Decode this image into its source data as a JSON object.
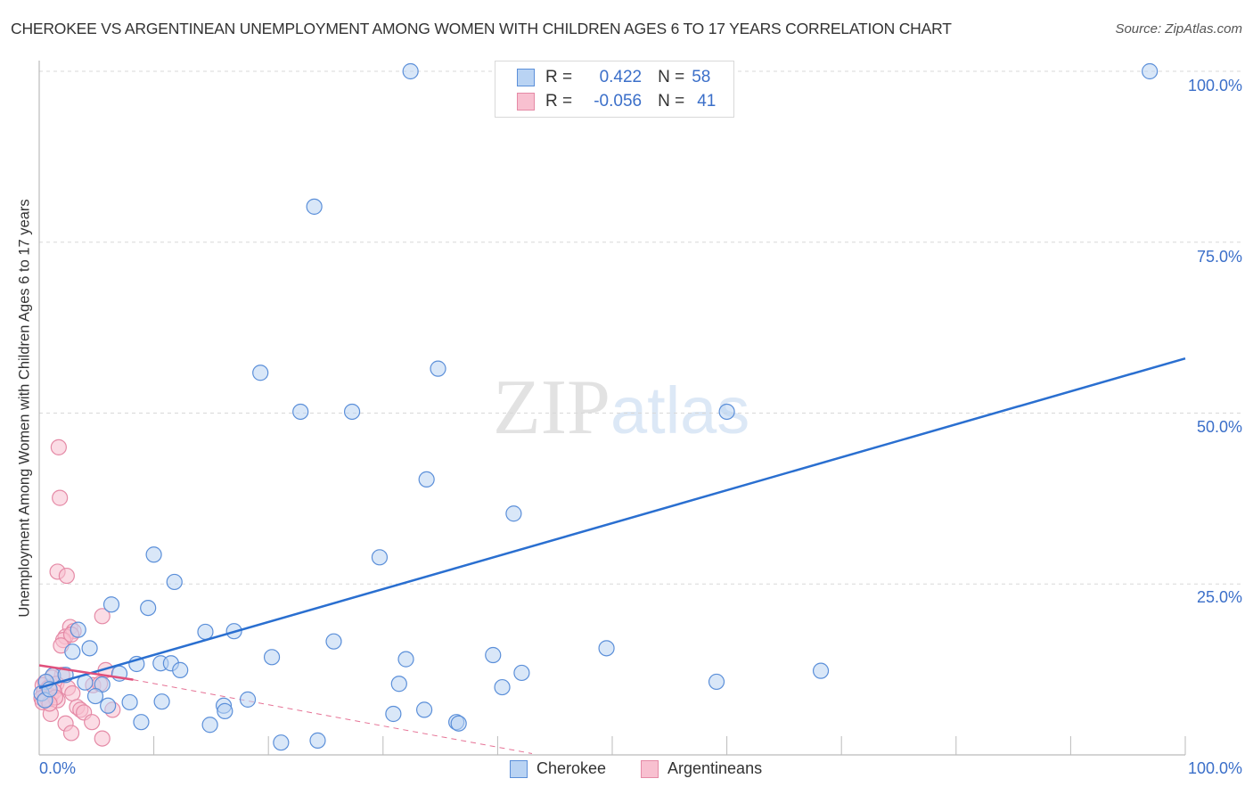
{
  "header": {
    "title": "CHEROKEE VS ARGENTINEAN UNEMPLOYMENT AMONG WOMEN WITH CHILDREN AGES 6 TO 17 YEARS CORRELATION CHART",
    "source": "Source: ZipAtlas.com"
  },
  "watermark": {
    "zip": "ZIP",
    "atlas": "atlas"
  },
  "axes": {
    "ylabel": "Unemployment Among Women with Children Ages 6 to 17 years",
    "y_ticks": [
      "100.0%",
      "75.0%",
      "50.0%",
      "25.0%"
    ],
    "x_ticks": [
      "0.0%",
      "100.0%"
    ]
  },
  "legend": {
    "rows": [
      {
        "series": "Cherokee",
        "r_label": "R =",
        "r_value": "0.422",
        "n_label": "N =",
        "n_value": "58"
      },
      {
        "series": "Argentineans",
        "r_label": "R =",
        "r_value": "-0.056",
        "n_label": "N =",
        "n_value": "41"
      }
    ],
    "bottom": [
      "Cherokee",
      "Argentineans"
    ]
  },
  "colors": {
    "cherokee_fill": "#b9d3f3",
    "cherokee_stroke": "#5b8fd9",
    "cherokee_line": "#2a6fd0",
    "argentineans_fill": "#f8c0d0",
    "argentineans_stroke": "#e58aa6",
    "argentineans_line": "#e0507c",
    "tick_label": "#3b6fc9",
    "grid": "#d8d8d8"
  },
  "chart_data": {
    "type": "scatter",
    "title": "CHEROKEE VS ARGENTINEAN UNEMPLOYMENT AMONG WOMEN WITH CHILDREN AGES 6 TO 17 YEARS CORRELATION CHART",
    "xlabel": "",
    "ylabel": "Unemployment Among Women with Children Ages 6 to 17 years",
    "xlim": [
      0,
      100
    ],
    "ylim": [
      0,
      100
    ],
    "x_ticks": [
      0,
      10,
      20,
      30,
      40,
      50,
      60,
      70,
      80,
      90,
      100
    ],
    "y_ticks": [
      25,
      50,
      75,
      100
    ],
    "grid": true,
    "legend_position": "top-center",
    "series": [
      {
        "name": "Cherokee",
        "R": 0.422,
        "N": 58,
        "trendline": {
          "x": [
            0,
            100
          ],
          "y": [
            9.8,
            58.0
          ],
          "style": "solid"
        },
        "points": [
          [
            32.4,
            100.0
          ],
          [
            96.9,
            100.0
          ],
          [
            24.0,
            80.2
          ],
          [
            19.3,
            55.9
          ],
          [
            34.8,
            56.5
          ],
          [
            22.8,
            50.2
          ],
          [
            27.3,
            50.2
          ],
          [
            60.0,
            50.2
          ],
          [
            33.8,
            40.3
          ],
          [
            41.4,
            35.3
          ],
          [
            29.7,
            28.9
          ],
          [
            10.0,
            29.3
          ],
          [
            11.8,
            25.3
          ],
          [
            6.3,
            22.0
          ],
          [
            9.5,
            21.5
          ],
          [
            14.5,
            18.0
          ],
          [
            17.0,
            18.1
          ],
          [
            3.4,
            18.3
          ],
          [
            25.7,
            16.6
          ],
          [
            49.5,
            15.6
          ],
          [
            4.4,
            15.6
          ],
          [
            20.3,
            14.3
          ],
          [
            2.9,
            15.1
          ],
          [
            39.6,
            14.6
          ],
          [
            32.0,
            14.0
          ],
          [
            8.5,
            13.3
          ],
          [
            10.6,
            13.4
          ],
          [
            11.5,
            13.4
          ],
          [
            12.3,
            12.4
          ],
          [
            42.1,
            12.0
          ],
          [
            68.2,
            12.3
          ],
          [
            7.0,
            11.9
          ],
          [
            1.2,
            11.6
          ],
          [
            2.3,
            11.7
          ],
          [
            0.6,
            10.7
          ],
          [
            4.0,
            10.6
          ],
          [
            5.5,
            10.3
          ],
          [
            31.4,
            10.4
          ],
          [
            59.1,
            10.7
          ],
          [
            40.4,
            9.9
          ],
          [
            4.9,
            8.6
          ],
          [
            18.2,
            8.1
          ],
          [
            7.9,
            7.7
          ],
          [
            10.7,
            7.8
          ],
          [
            16.1,
            7.2
          ],
          [
            6.0,
            7.2
          ],
          [
            16.2,
            6.4
          ],
          [
            33.6,
            6.6
          ],
          [
            30.9,
            6.0
          ],
          [
            36.4,
            4.8
          ],
          [
            36.6,
            4.6
          ],
          [
            8.9,
            4.8
          ],
          [
            14.9,
            4.4
          ],
          [
            21.1,
            1.8
          ],
          [
            24.3,
            2.1
          ],
          [
            0.2,
            9.0
          ],
          [
            0.5,
            8.0
          ],
          [
            0.9,
            9.6
          ]
        ]
      },
      {
        "name": "Argentineans",
        "R": -0.056,
        "N": 41,
        "trendline": {
          "x": [
            0,
            8.2
          ],
          "y": [
            13.1,
            11.0
          ],
          "style": "solid",
          "extension": {
            "x": [
              8.2,
              43
            ],
            "y": [
              11.0,
              0.2
            ],
            "style": "dashed"
          }
        },
        "points": [
          [
            1.7,
            45.0
          ],
          [
            1.8,
            37.6
          ],
          [
            1.6,
            26.8
          ],
          [
            2.4,
            26.2
          ],
          [
            5.5,
            20.3
          ],
          [
            2.7,
            18.7
          ],
          [
            3.0,
            18.1
          ],
          [
            2.3,
            17.3
          ],
          [
            2.1,
            16.8
          ],
          [
            1.9,
            16.0
          ],
          [
            2.8,
            17.6
          ],
          [
            5.8,
            12.4
          ],
          [
            2.0,
            11.7
          ],
          [
            1.1,
            11.3
          ],
          [
            0.5,
            10.6
          ],
          [
            0.3,
            10.2
          ],
          [
            1.5,
            10.4
          ],
          [
            0.8,
            9.8
          ],
          [
            2.5,
            9.8
          ],
          [
            0.4,
            9.2
          ],
          [
            0.6,
            8.8
          ],
          [
            1.0,
            8.6
          ],
          [
            1.3,
            9.3
          ],
          [
            0.2,
            8.3
          ],
          [
            0.7,
            8.2
          ],
          [
            1.6,
            8.0
          ],
          [
            0.3,
            7.7
          ],
          [
            2.9,
            9.0
          ],
          [
            4.7,
            10.2
          ],
          [
            5.3,
            10.4
          ],
          [
            3.3,
            7.0
          ],
          [
            3.6,
            6.6
          ],
          [
            3.9,
            6.2
          ],
          [
            6.4,
            6.6
          ],
          [
            1.0,
            6.0
          ],
          [
            2.3,
            4.6
          ],
          [
            4.6,
            4.8
          ],
          [
            2.8,
            3.2
          ],
          [
            5.5,
            2.4
          ],
          [
            1.4,
            8.4
          ],
          [
            0.9,
            7.5
          ]
        ]
      }
    ]
  }
}
